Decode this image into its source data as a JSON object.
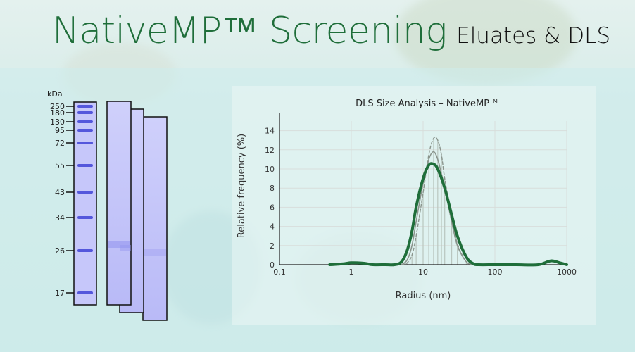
{
  "header": {
    "title": "NativeMP™ Screening",
    "subtitle": "Eluates & DLS"
  },
  "gel": {
    "unit_label": "kDa",
    "markers": [
      "250",
      "180",
      "130",
      "95",
      "72",
      "55",
      "43",
      "34",
      "26",
      "17"
    ]
  },
  "chart_data": {
    "type": "line",
    "title": "DLS Size Analysis – NativeMP",
    "title_superscript": "TM",
    "xlabel": "Radius (nm)",
    "ylabel": "Relative frequency (%)",
    "x_scale": "log",
    "xlim": [
      0.1,
      1000
    ],
    "ylim": [
      0,
      15
    ],
    "x_ticks": [
      "0.1",
      "1",
      "10",
      "100",
      "1000"
    ],
    "y_ticks": [
      "0",
      "2",
      "4",
      "6",
      "8",
      "10",
      "12",
      "14"
    ],
    "grid": true,
    "colors": {
      "primary": "#1f6e3a",
      "secondary": "#8a948c",
      "bars": "#b9c6bf"
    },
    "series": [
      {
        "style": "thick-solid-green",
        "x": [
          0.5,
          0.8,
          1.0,
          1.5,
          2.0,
          3.0,
          4.0,
          5.0,
          6.0,
          7.0,
          8.0,
          10.0,
          12.0,
          14.0,
          16.0,
          20.0,
          25.0,
          30.0,
          40.0,
          50.0,
          60.0,
          100.0,
          200.0,
          400.0,
          600.0,
          800.0,
          1000.0
        ],
        "y": [
          0,
          0.1,
          0.2,
          0.15,
          0,
          0,
          0,
          0.3,
          1.5,
          3.5,
          6.0,
          9.0,
          10.4,
          10.5,
          10.0,
          8.0,
          5.2,
          3.0,
          0.8,
          0.1,
          0,
          0,
          0,
          0,
          0.4,
          0.2,
          0
        ]
      },
      {
        "style": "thin-solid-gray",
        "x": [
          5.0,
          6.0,
          7.0,
          8.0,
          10.0,
          12.0,
          14.0,
          16.0,
          18.0,
          20.0,
          25.0,
          30.0,
          40.0,
          50.0
        ],
        "y": [
          0,
          0.5,
          2.0,
          4.5,
          8.5,
          11.0,
          11.8,
          11.0,
          9.5,
          8.0,
          4.5,
          2.0,
          0.3,
          0
        ]
      },
      {
        "style": "dashed-gray",
        "x": [
          5.0,
          6.0,
          7.0,
          8.0,
          10.0,
          12.0,
          14.0,
          16.0,
          18.0,
          20.0,
          25.0,
          30.0,
          40.0,
          50.0
        ],
        "y": [
          0,
          0.2,
          1.0,
          3.0,
          7.5,
          11.5,
          13.2,
          13.0,
          11.5,
          9.0,
          5.0,
          2.2,
          0.3,
          0
        ]
      }
    ]
  }
}
